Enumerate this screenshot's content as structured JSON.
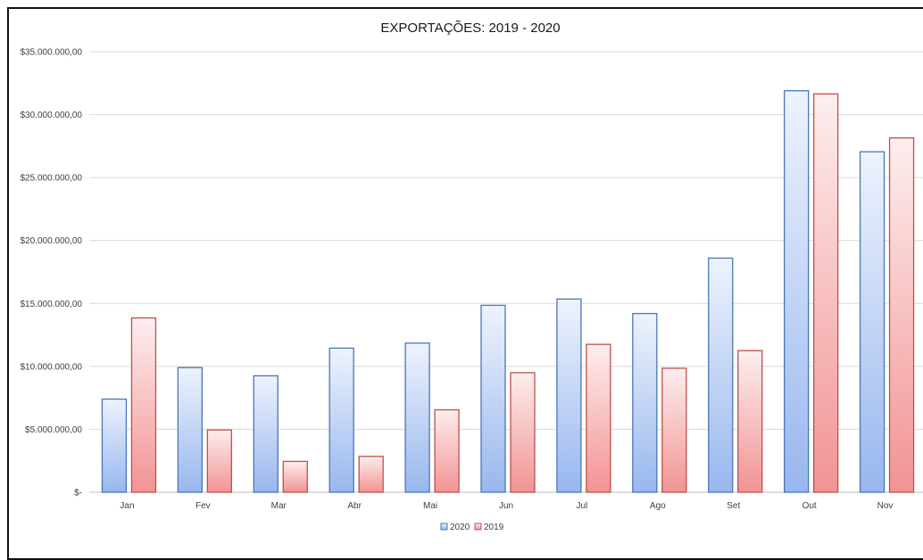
{
  "chart_data": {
    "type": "bar",
    "title": "EXPORTAÇÕES:  2019 - 2020",
    "xlabel": "",
    "ylabel": "",
    "categories": [
      "Jan",
      "Fev",
      "Mar",
      "Abr",
      "Mai",
      "Jun",
      "Jul",
      "Ago",
      "Set",
      "Out",
      "Nov"
    ],
    "series": [
      {
        "name": "2020",
        "color": "#8fb2ef",
        "values": [
          7400000,
          9900000,
          9250000,
          11450000,
          11850000,
          14850000,
          15350000,
          14200000,
          18600000,
          31900000,
          27050000
        ]
      },
      {
        "name": "2019",
        "color": "#f08d8d",
        "values": [
          13850000,
          4950000,
          2450000,
          2850000,
          6550000,
          9500000,
          11750000,
          9850000,
          11250000,
          31650000,
          28150000
        ]
      }
    ],
    "ylim": [
      0,
      35000000
    ],
    "yticks": [
      0,
      5000000,
      10000000,
      15000000,
      20000000,
      25000000,
      30000000,
      35000000
    ],
    "ytick_labels": [
      "$-",
      "$5.000.000,00",
      "$10.000.000,00",
      "$15.000.000,00",
      "$20.000.000,00",
      "$25.000.000,00",
      "$30.000.000,00",
      "$35.000.000,00"
    ],
    "grid": true,
    "legend_position": "bottom-center"
  }
}
